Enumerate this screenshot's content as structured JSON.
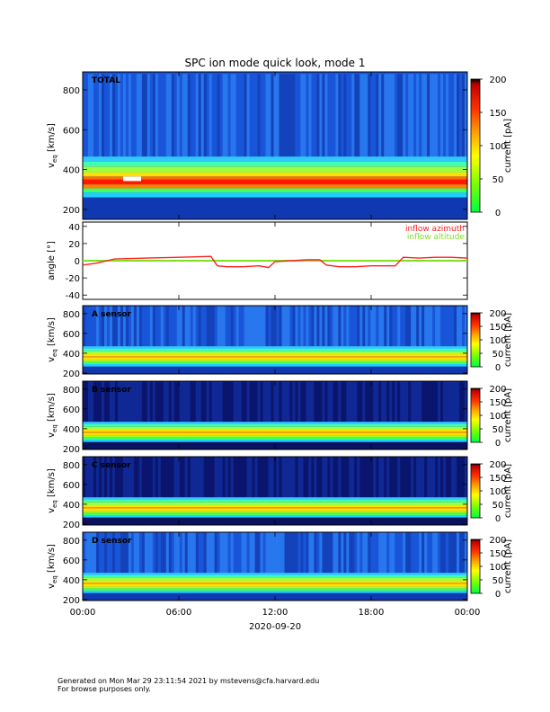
{
  "title": "SPC ion mode quick look, mode 1",
  "footer": {
    "line1": "Generated on Mon Mar 29 23:11:54 2021 by mstevens@cfa.harvard.edu",
    "line2": "For browse purposes only."
  },
  "x_axis": {
    "ticks": [
      "00:00",
      "06:00",
      "12:00",
      "18:00",
      "00:00"
    ],
    "date_label": "2020-09-20",
    "range_hours": [
      0,
      24
    ]
  },
  "colorbar": {
    "label": "current [pA]",
    "range": [
      0,
      200
    ],
    "ticks": [
      "0",
      "50",
      "100",
      "150",
      "200"
    ],
    "colormap": [
      "#00ff40",
      "#80ff00",
      "#ffff00",
      "#ffa000",
      "#ff3000",
      "#d00000",
      "#000000"
    ]
  },
  "colors": {
    "background_low": "#0a1a6e",
    "background_mid": "#1560e0",
    "azimuth": "#ff2020",
    "altitude": "#80e020"
  },
  "chart_data": [
    {
      "type": "heatmap",
      "panel_label": "TOTAL",
      "ylabel": "v_eq [km/s]",
      "ylabel_main": "v",
      "ylabel_sub": "eq",
      "ylabel_unit": "[km/s]",
      "yticks": [
        "200",
        "400",
        "600",
        "800"
      ],
      "ylim": [
        150,
        890
      ],
      "peak_speed_kms": 340,
      "peak_current_pA": 190,
      "description_levels": {
        "x_hours": [
          0,
          3,
          6,
          9,
          12,
          15,
          18,
          21,
          24
        ],
        "peak_kms": [
          345,
          350,
          345,
          335,
          340,
          335,
          345,
          345,
          340
        ]
      }
    },
    {
      "type": "line",
      "ylabel": "angle [°]",
      "yticks": [
        "40",
        "20",
        "0",
        "-20",
        "-40"
      ],
      "ylim": [
        -45,
        45
      ],
      "legend": [
        "inflow azimuth",
        "inflow altitude"
      ],
      "series": [
        {
          "name": "inflow azimuth",
          "x": [
            0,
            0.8,
            2,
            4,
            6,
            8,
            8.4,
            9,
            10,
            11,
            11.6,
            12,
            13,
            14,
            14.8,
            15.2,
            16,
            17,
            18,
            19.5,
            20,
            21,
            22,
            23,
            24
          ],
          "values": [
            -5,
            -3,
            2,
            3,
            4,
            5,
            -6,
            -7,
            -7,
            -6,
            -8,
            -1,
            0,
            1,
            1,
            -5,
            -7,
            -7,
            -6,
            -6,
            4,
            3,
            4,
            4,
            3
          ]
        },
        {
          "name": "inflow altitude",
          "x": [
            0,
            6,
            12,
            18,
            24
          ],
          "values": [
            0,
            0,
            0,
            0,
            0
          ]
        }
      ]
    },
    {
      "type": "heatmap",
      "panel_label": "A sensor",
      "ylabel": "v_eq [km/s]",
      "ylabel_main": "v",
      "ylabel_sub": "eq",
      "ylabel_unit": "[km/s]",
      "yticks": [
        "200",
        "400",
        "600",
        "800"
      ],
      "ylim": [
        190,
        880
      ],
      "peak_speed_kms": 345,
      "colorbar_ticks": [
        "0",
        "50",
        "100",
        "150",
        "200"
      ]
    },
    {
      "type": "heatmap",
      "panel_label": "B sensor",
      "ylabel": "v_eq [km/s]",
      "ylabel_main": "v",
      "ylabel_sub": "eq",
      "ylabel_unit": "[km/s]",
      "yticks": [
        "200",
        "400",
        "600",
        "800"
      ],
      "ylim": [
        190,
        880
      ],
      "peak_speed_kms": 345,
      "colorbar_ticks": [
        "0",
        "50",
        "100",
        "150",
        "200"
      ]
    },
    {
      "type": "heatmap",
      "panel_label": "C sensor",
      "ylabel": "v_eq [km/s]",
      "ylabel_main": "v",
      "ylabel_sub": "eq",
      "ylabel_unit": "[km/s]",
      "yticks": [
        "200",
        "400",
        "600",
        "800"
      ],
      "ylim": [
        190,
        880
      ],
      "peak_speed_kms": 345,
      "colorbar_ticks": [
        "0",
        "50",
        "100",
        "150",
        "200"
      ]
    },
    {
      "type": "heatmap",
      "panel_label": "D sensor",
      "ylabel": "v_eq [km/s]",
      "ylabel_main": "v",
      "ylabel_sub": "eq",
      "ylabel_unit": "[km/s]",
      "yticks": [
        "200",
        "400",
        "600",
        "800"
      ],
      "ylim": [
        190,
        880
      ],
      "peak_speed_kms": 345,
      "colorbar_ticks": [
        "0",
        "50",
        "100",
        "150",
        "200"
      ]
    }
  ]
}
